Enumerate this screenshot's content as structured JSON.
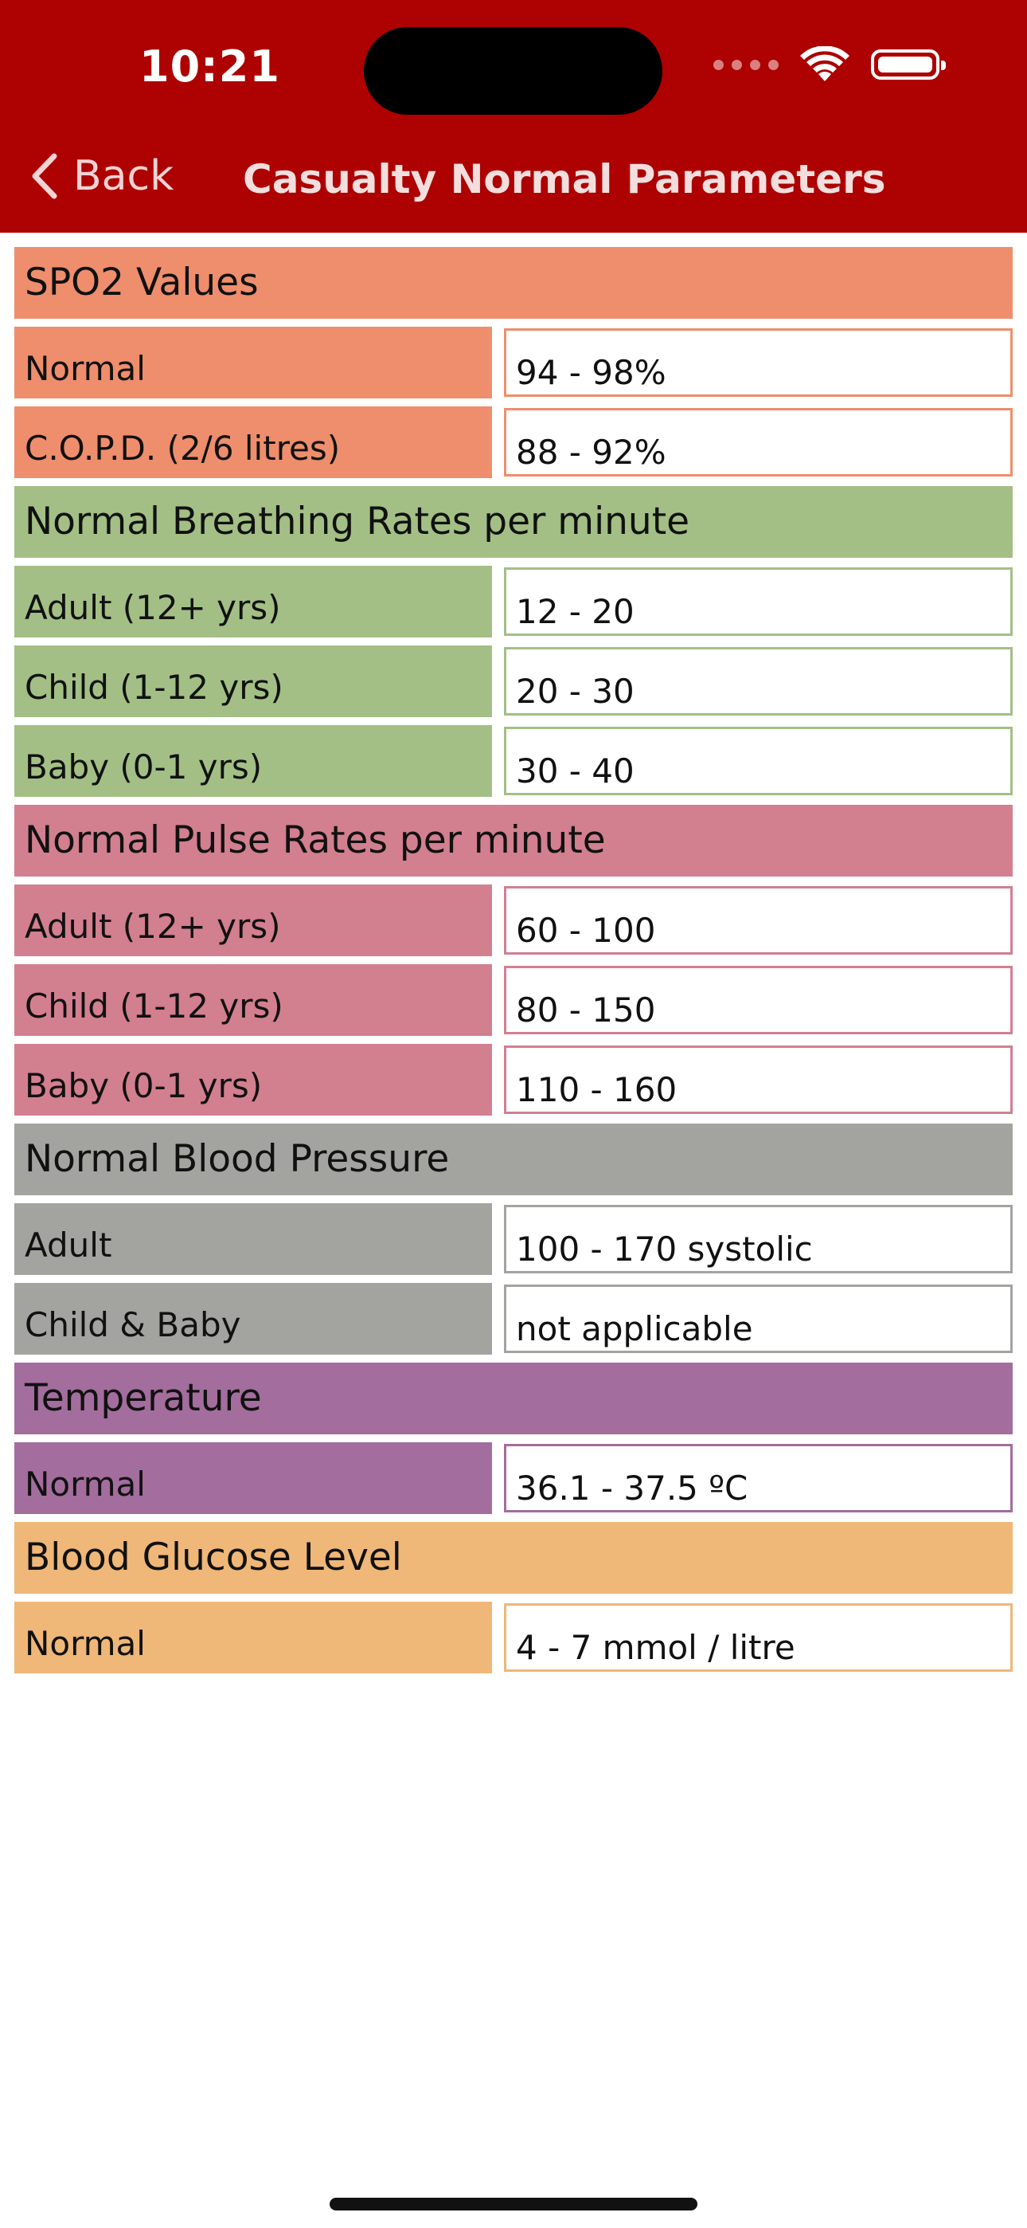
{
  "status_bar": {
    "time": "10:21"
  },
  "nav": {
    "back_label": "Back",
    "title": "Casualty Normal Parameters"
  },
  "sections": [
    {
      "title": "SPO2 Values",
      "color": "#ee8e6c",
      "rows": [
        {
          "label": "Normal",
          "value": "94 - 98%"
        },
        {
          "label": "C.O.P.D. (2/6 litres)",
          "value": "88 - 92%"
        }
      ]
    },
    {
      "title": "Normal Breathing Rates per minute",
      "color": "#a3bf85",
      "rows": [
        {
          "label": "Adult (12+ yrs)",
          "value": "12 - 20"
        },
        {
          "label": "Child (1-12 yrs)",
          "value": "20 - 30"
        },
        {
          "label": "Baby (0-1 yrs)",
          "value": "30 - 40"
        }
      ]
    },
    {
      "title": "Normal Pulse Rates per minute",
      "color": "#d27f8f",
      "rows": [
        {
          "label": "Adult (12+ yrs)",
          "value": "60 - 100"
        },
        {
          "label": "Child (1-12 yrs)",
          "value": "80 - 150"
        },
        {
          "label": "Baby (0-1 yrs)",
          "value": "110 - 160"
        }
      ]
    },
    {
      "title": "Normal Blood Pressure",
      "color": "#a3a3a0",
      "rows": [
        {
          "label": "Adult",
          "value": "100 - 170 systolic"
        },
        {
          "label": "Child & Baby",
          "value": "not applicable"
        }
      ]
    },
    {
      "title": "Temperature",
      "color": "#a36d9d",
      "rows": [
        {
          "label": "Normal",
          "value": "36.1 - 37.5 ºC"
        }
      ]
    },
    {
      "title": "Blood Glucose Level",
      "color": "#efb778",
      "rows": [
        {
          "label": "Normal",
          "value": "4 - 7 mmol / litre"
        }
      ]
    }
  ]
}
